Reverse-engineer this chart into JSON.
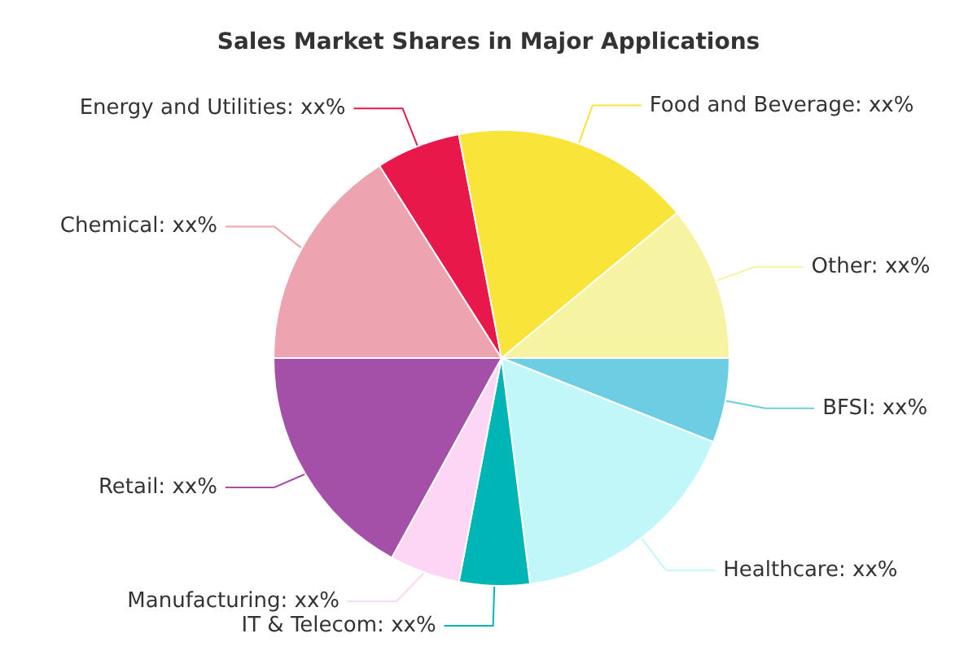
{
  "chart_data": {
    "type": "pie",
    "title": "Sales Market Shares in Major Applications",
    "categories": [
      "BFSI",
      "Healthcare",
      "IT & Telecom",
      "Manufacturing",
      "Retail",
      "Chemical",
      "Energy and Utilities",
      "Food and Beverage",
      "Other"
    ],
    "values": [
      6,
      17,
      5,
      5,
      17,
      16,
      6,
      17,
      11
    ],
    "value_labels": [
      "xx%",
      "xx%",
      "xx%",
      "xx%",
      "xx%",
      "xx%",
      "xx%",
      "xx%",
      "xx%"
    ],
    "colors": [
      "#6ccde3",
      "#c2f7fa",
      "#00b5b5",
      "#fdd5f5",
      "#a550a8",
      "#eda3b0",
      "#e8194a",
      "#f9e43a",
      "#f6f3a2"
    ],
    "legend": false
  }
}
